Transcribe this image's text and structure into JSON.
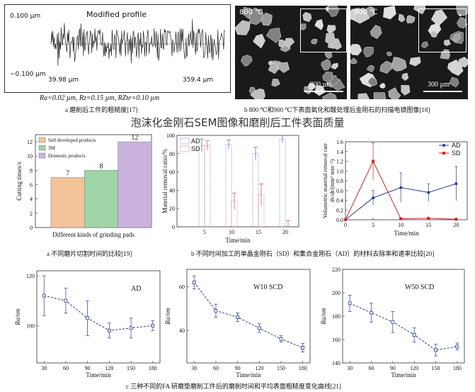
{
  "section_title": "泡沫化金刚石SEM图像和磨削后工件表面质量",
  "profile": {
    "title": "Modified profile",
    "y_top": "0.100 µm",
    "y_bottom": "−0.100 µm",
    "x_left": "39.98 µm",
    "x_right": "359.4 µm",
    "roughness": "Ra=0.02 µm, Rz=0.15 µm, RZte=0.10 µm",
    "caption": "a 磨削后工件的粗糙度[17]"
  },
  "sem": {
    "left_temp": "800 ℃",
    "right_temp": "900 ℃",
    "scale_left": "300 µm",
    "scale_right": "300 µm",
    "caption": "b 800 ℃和900 ℃下表面氧化和酸处理后金刚石的扫描电镜图像[18]"
  },
  "captions": {
    "cutting": "a 不同磨片切割时间的比较[19]",
    "removal": "b 不同时间加工的单晶金刚石（SD）和集合金刚石（AD）的材料去除率和速率比较[20]",
    "roughness_curves": "c 三种不同的FA 研磨垫磨削工件后的磨削时间和平均表面粗糙度变化曲线[21]"
  },
  "chart_data": [
    {
      "type": "bar",
      "ylabel": "Cutting times/s",
      "xlabel": "Different kinds of grinding pads",
      "ylim": [
        0,
        13
      ],
      "yticks": [
        0,
        2,
        4,
        6,
        8,
        10,
        12
      ],
      "categories": [
        "Self developed products",
        "3M",
        "Domestic products"
      ],
      "values": [
        7,
        8,
        12
      ],
      "colors": [
        "#f4c39a",
        "#9fd5a7",
        "#c9b3dc"
      ],
      "legend": [
        "Self developed products",
        "3M",
        "Domestic products"
      ],
      "legend_position": "top-left"
    },
    {
      "type": "bar",
      "ylabel": "Material removal ratio/%",
      "xlabel": "Time/min",
      "ylim": [
        0,
        100
      ],
      "yticks": [
        0,
        20,
        40,
        60,
        80,
        100
      ],
      "categories": [
        "5",
        "10",
        "15",
        "20"
      ],
      "series": [
        {
          "name": "AD",
          "values": [
            89,
            90,
            80,
            96
          ],
          "err": [
            7,
            5,
            7,
            4
          ],
          "color": "#4a5fb5"
        },
        {
          "name": "SD",
          "values": [
            89,
            28,
            35,
            0
          ],
          "err": [
            5,
            9,
            12,
            7
          ],
          "color": "#d0464a"
        }
      ],
      "legend_position": "top-left"
    },
    {
      "type": "line",
      "ylabel": "Volumetric material removal rate",
      "ylabel2": "dv/dt/(mm³·min⁻¹)",
      "xlabel": "Time/min",
      "xlim": [
        0,
        22
      ],
      "ylim": [
        0,
        1.6
      ],
      "xticks": [
        0,
        5,
        10,
        15,
        20
      ],
      "yticks": [
        0.0,
        0.2,
        0.4,
        0.6,
        0.8,
        1.0,
        1.2,
        1.4,
        1.6
      ],
      "series": [
        {
          "name": "AD",
          "x": [
            0,
            5,
            10,
            15,
            20
          ],
          "y": [
            0.0,
            0.45,
            0.66,
            0.56,
            0.74
          ],
          "err": [
            0,
            0.15,
            0.3,
            0.18,
            0.35
          ],
          "color": "#2a3c8f"
        },
        {
          "name": "SD",
          "x": [
            0,
            5,
            10,
            15,
            20
          ],
          "y": [
            0.0,
            1.2,
            0.02,
            0.03,
            0.01
          ],
          "err": [
            0,
            0.38,
            0.02,
            0.02,
            0.02
          ],
          "color": "#c82828"
        }
      ],
      "legend_position": "top-right"
    },
    {
      "type": "line",
      "label": "AD",
      "ylabel": "Ra/nm",
      "xlabel": "Time/min",
      "ylim": [
        85,
        122
      ],
      "yticks": [
        100,
        120
      ],
      "xticks": [
        30,
        60,
        90,
        120,
        150,
        180
      ],
      "series": [
        {
          "x": [
            30,
            60,
            90,
            120,
            150,
            180
          ],
          "y": [
            112,
            110,
            103,
            98,
            99,
            100
          ],
          "err": [
            8,
            5,
            7,
            3,
            4,
            2
          ]
        }
      ]
    },
    {
      "type": "line",
      "label": "W10 SCD",
      "ylabel": "Ra/nm",
      "xlabel": "Time/min",
      "ylim": [
        25,
        68
      ],
      "yticks": [
        40,
        60
      ],
      "xticks": [
        30,
        60,
        90,
        120,
        150,
        180
      ],
      "series": [
        {
          "x": [
            30,
            60,
            90,
            120,
            150,
            180
          ],
          "y": [
            62,
            49,
            46,
            41,
            36,
            32
          ],
          "err": [
            3,
            3,
            2,
            2,
            1.5,
            2
          ]
        }
      ]
    },
    {
      "type": "line",
      "label": "W50 SCD",
      "ylabel": "Ra/nm",
      "xlabel": "Time/min",
      "ylim": [
        140,
        220
      ],
      "yticks": [
        140,
        160,
        180,
        200,
        220
      ],
      "xticks": [
        30,
        60,
        90,
        120,
        150,
        180
      ],
      "series": [
        {
          "x": [
            30,
            60,
            90,
            120,
            150,
            180
          ],
          "y": [
            191,
            183,
            175,
            164,
            151,
            154
          ],
          "err": [
            7,
            8,
            9,
            6,
            5,
            3
          ]
        }
      ]
    }
  ]
}
